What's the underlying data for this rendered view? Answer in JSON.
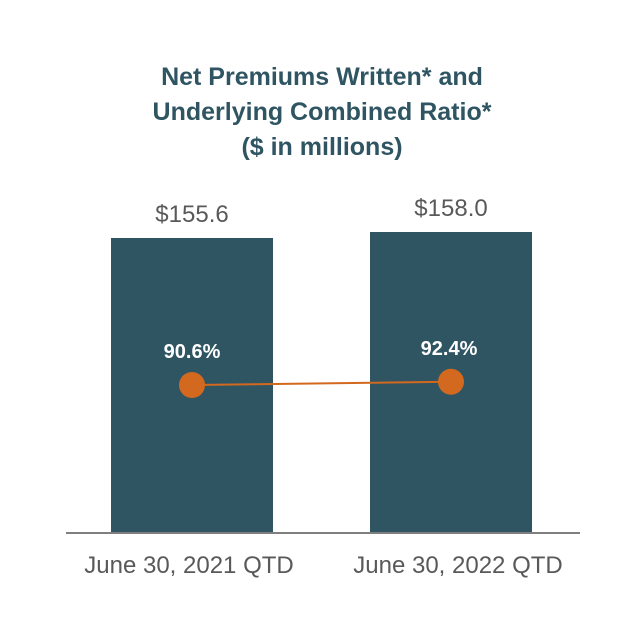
{
  "title_lines": [
    "Net Premiums Written* and",
    "Underlying Combined Ratio*",
    "($ in millions)"
  ],
  "colors": {
    "bar": "#2f5563",
    "line": "#d2691e",
    "title": "#2f5563",
    "value_label": "#595959",
    "axis": "#7f7f7f",
    "ratio_label": "#ffffff"
  },
  "chart_data": {
    "type": "bar",
    "title": "Net Premiums Written* and Underlying Combined Ratio* ($ in millions)",
    "categories": [
      "June 30, 2021 QTD",
      "June 30, 2022 QTD"
    ],
    "series": [
      {
        "name": "Net Premiums Written*",
        "type": "bar",
        "values": [
          155.6,
          158.0
        ],
        "labels": [
          "$155.6",
          "$158.0"
        ]
      },
      {
        "name": "Underlying Combined Ratio*",
        "type": "line",
        "values": [
          90.6,
          92.4
        ],
        "labels": [
          "90.6%",
          "92.4%"
        ]
      }
    ],
    "xlabel": "",
    "ylabel": "",
    "grid": false,
    "legend": "none"
  }
}
